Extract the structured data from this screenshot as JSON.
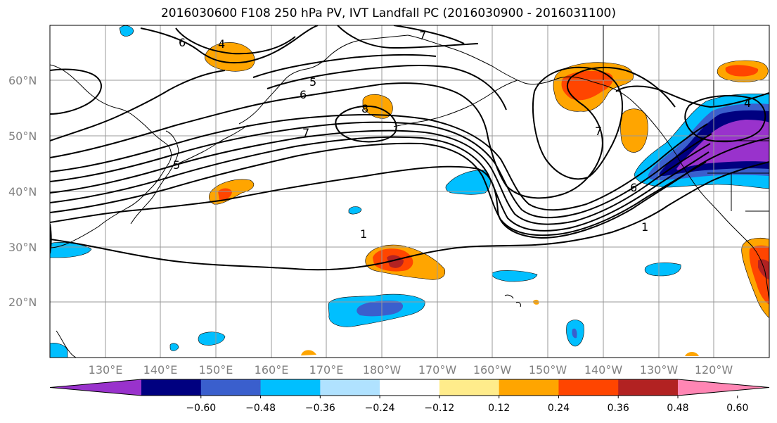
{
  "title": "2016030600 F108 250 hPa PV, IVT Landfall PC (2016030900 - 2016031100)",
  "lat_labels": [
    "60°N",
    "50°N",
    "40°N",
    "30°N",
    "20°N"
  ],
  "lon_labels": [
    "130°E",
    "140°E",
    "150°E",
    "160°E",
    "170°E",
    "180°W",
    "170°W",
    "160°W",
    "150°W",
    "140°W",
    "130°W",
    "120°W"
  ],
  "pv_contour_labels": [
    "1",
    "1",
    "4",
    "6",
    "6",
    "7",
    "7",
    "8",
    "5",
    "6",
    "4",
    "7",
    "5"
  ],
  "colorbar": {
    "ticks": [
      "−0.60",
      "−0.48",
      "−0.36",
      "−0.24",
      "−0.12",
      "0.12",
      "0.24",
      "0.36",
      "0.48",
      "0.60"
    ],
    "colors": [
      "#9932cc",
      "#000080",
      "#3a5fcd",
      "#00bfff",
      "#b0e2ff",
      "#ffffff",
      "#ffec8b",
      "#ffa500",
      "#ff4500",
      "#b22222",
      "#ff86b4"
    ]
  },
  "colors": {
    "grid": "#999999",
    "coast": "#000000",
    "contour": "#000000",
    "axis_label": "#808080"
  }
}
